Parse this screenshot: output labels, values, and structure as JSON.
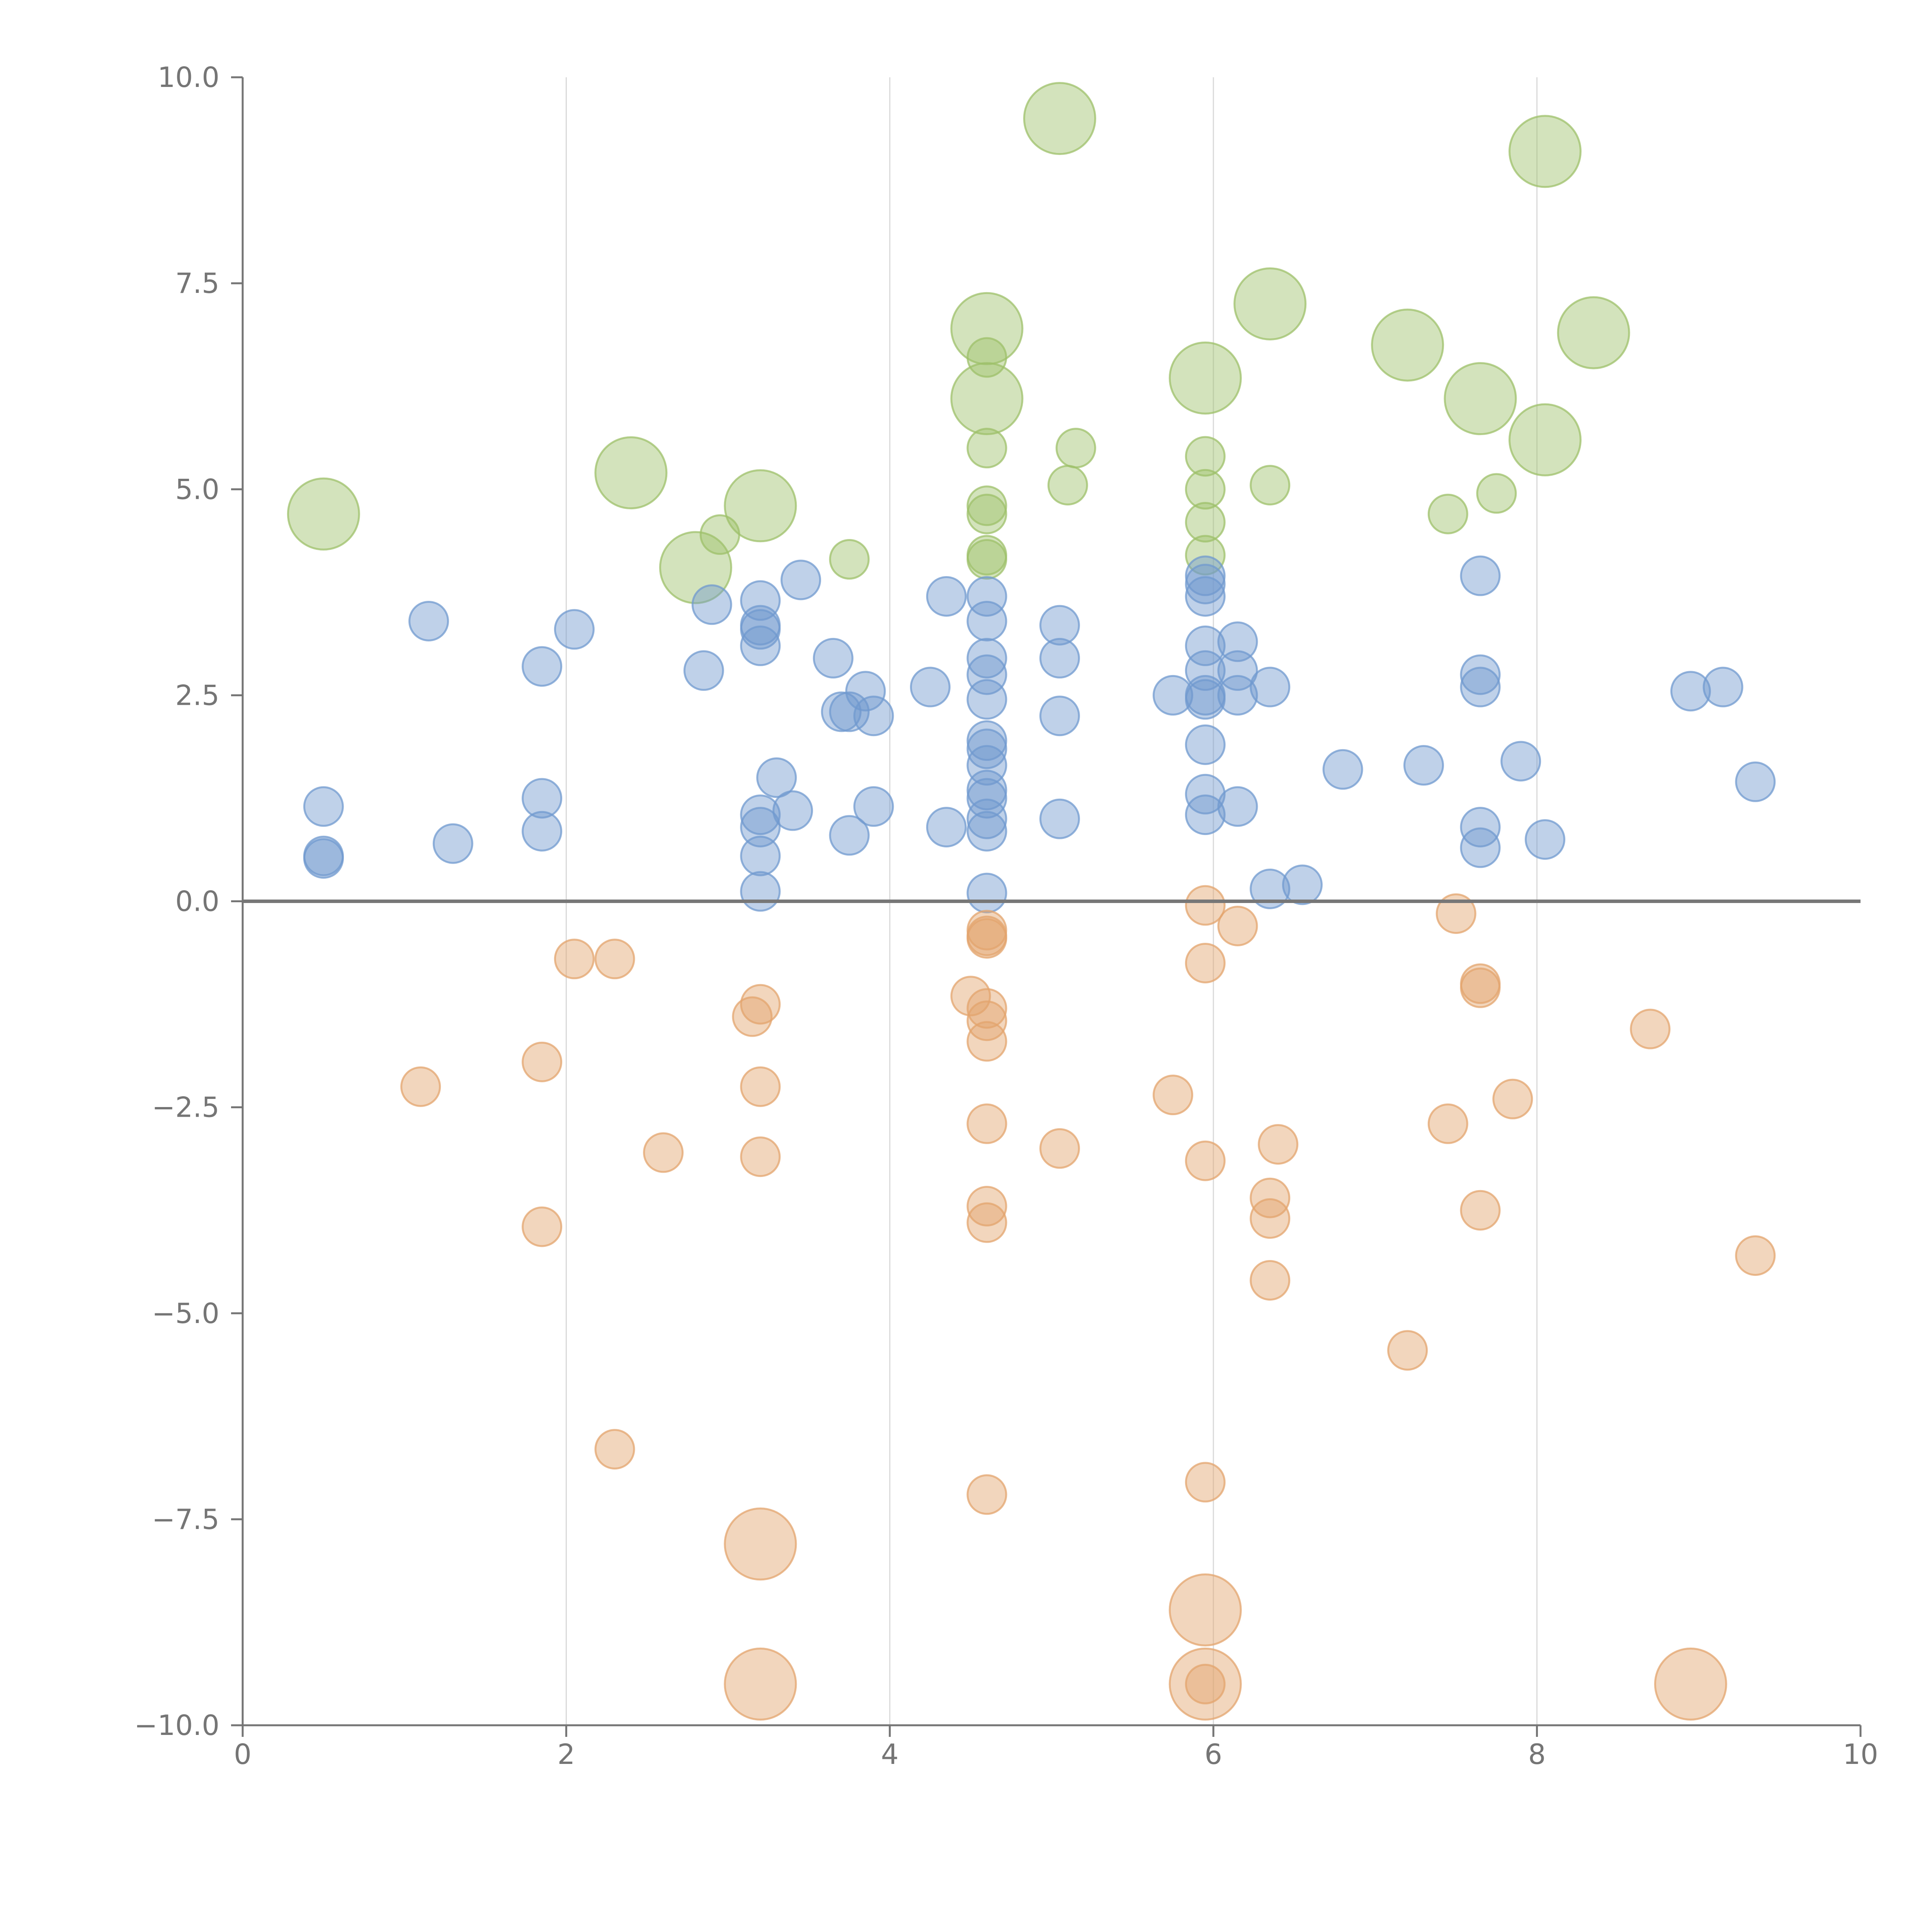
{
  "chart_data": {
    "type": "scatter",
    "title": "",
    "xlabel": "",
    "ylabel": "",
    "xlim": [
      0,
      10
    ],
    "ylim": [
      -10,
      10
    ],
    "xticks": [
      "0",
      "2",
      "4",
      "6",
      "8",
      "10"
    ],
    "yticks": [
      "10.0",
      "7.5",
      "5.0",
      "2.5",
      "0.0",
      "-2.5",
      "-5.0",
      "-7.5",
      "-10.0"
    ],
    "grid": "vertical lines at x = 2, 4, 6, 8",
    "baseline_y": 0,
    "legend": "none",
    "size_scale": "larger bubbles for larger magnitude points",
    "series": [
      {
        "name": "green",
        "color": "#9dc06a",
        "points": [
          [
            0.5,
            4.7,
            "l"
          ],
          [
            2.4,
            5.2,
            "l"
          ],
          [
            2.8,
            4.05,
            "l"
          ],
          [
            2.95,
            4.45,
            "s"
          ],
          [
            3.2,
            4.8,
            "l"
          ],
          [
            3.75,
            4.15,
            "s"
          ],
          [
            4.6,
            6.95,
            "l"
          ],
          [
            4.6,
            6.6,
            "s"
          ],
          [
            4.6,
            6.1,
            "l"
          ],
          [
            4.6,
            5.5,
            "s"
          ],
          [
            4.6,
            4.8,
            "s"
          ],
          [
            4.6,
            4.7,
            "s"
          ],
          [
            4.6,
            4.2,
            "s"
          ],
          [
            4.6,
            4.15,
            "s"
          ],
          [
            5.05,
            9.5,
            "l"
          ],
          [
            5.1,
            5.05,
            "s"
          ],
          [
            5.15,
            5.5,
            "s"
          ],
          [
            5.95,
            6.35,
            "l"
          ],
          [
            5.95,
            5.4,
            "s"
          ],
          [
            5.95,
            5.0,
            "s"
          ],
          [
            5.95,
            4.6,
            "s"
          ],
          [
            5.95,
            4.2,
            "s"
          ],
          [
            6.35,
            7.25,
            "l"
          ],
          [
            6.35,
            5.05,
            "s"
          ],
          [
            7.2,
            6.75,
            "l"
          ],
          [
            7.45,
            4.7,
            "s"
          ],
          [
            7.65,
            6.1,
            "l"
          ],
          [
            7.75,
            4.95,
            "s"
          ],
          [
            8.05,
            9.1,
            "l"
          ],
          [
            8.05,
            5.6,
            "l"
          ],
          [
            8.35,
            6.9,
            "l"
          ]
        ]
      },
      {
        "name": "blue",
        "color": "#7099cf",
        "points": [
          [
            0.5,
            1.15,
            "s"
          ],
          [
            0.5,
            0.55,
            "s"
          ],
          [
            0.5,
            0.52,
            "s"
          ],
          [
            1.15,
            3.4,
            "s"
          ],
          [
            1.3,
            0.7,
            "s"
          ],
          [
            1.85,
            2.85,
            "s"
          ],
          [
            1.85,
            1.25,
            "s"
          ],
          [
            1.85,
            0.85,
            "s"
          ],
          [
            2.05,
            3.3,
            "s"
          ],
          [
            2.85,
            2.8,
            "s"
          ],
          [
            2.9,
            3.6,
            "s"
          ],
          [
            3.2,
            3.65,
            "s"
          ],
          [
            3.2,
            3.35,
            "s"
          ],
          [
            3.2,
            3.3,
            "s"
          ],
          [
            3.2,
            3.1,
            "s"
          ],
          [
            3.2,
            1.05,
            "s"
          ],
          [
            3.2,
            0.9,
            "s"
          ],
          [
            3.2,
            0.55,
            "s"
          ],
          [
            3.2,
            0.12,
            "s"
          ],
          [
            3.3,
            1.5,
            "s"
          ],
          [
            3.4,
            1.1,
            "s"
          ],
          [
            3.45,
            3.9,
            "s"
          ],
          [
            3.65,
            2.95,
            "s"
          ],
          [
            3.7,
            2.3,
            "s"
          ],
          [
            3.75,
            0.8,
            "s"
          ],
          [
            3.75,
            2.3,
            "s"
          ],
          [
            3.85,
            2.55,
            "s"
          ],
          [
            3.9,
            2.25,
            "s"
          ],
          [
            3.9,
            1.15,
            "s"
          ],
          [
            4.25,
            2.6,
            "s"
          ],
          [
            4.35,
            3.7,
            "s"
          ],
          [
            4.35,
            0.9,
            "s"
          ],
          [
            4.6,
            3.7,
            "s"
          ],
          [
            4.6,
            3.4,
            "s"
          ],
          [
            4.6,
            2.95,
            "s"
          ],
          [
            4.6,
            2.75,
            "s"
          ],
          [
            4.6,
            2.45,
            "s"
          ],
          [
            4.6,
            1.95,
            "s"
          ],
          [
            4.6,
            1.85,
            "s"
          ],
          [
            4.6,
            1.65,
            "s"
          ],
          [
            4.6,
            1.35,
            "s"
          ],
          [
            4.6,
            1.25,
            "s"
          ],
          [
            4.6,
            1.0,
            "s"
          ],
          [
            4.6,
            0.85,
            "s"
          ],
          [
            4.6,
            0.1,
            "s"
          ],
          [
            5.05,
            3.35,
            "s"
          ],
          [
            5.05,
            2.95,
            "s"
          ],
          [
            5.05,
            2.25,
            "s"
          ],
          [
            5.05,
            1.0,
            "s"
          ],
          [
            5.75,
            2.5,
            "s"
          ],
          [
            5.95,
            3.95,
            "s"
          ],
          [
            5.95,
            3.85,
            "s"
          ],
          [
            5.95,
            3.7,
            "s"
          ],
          [
            5.95,
            3.1,
            "s"
          ],
          [
            5.95,
            2.8,
            "s"
          ],
          [
            5.95,
            2.5,
            "s"
          ],
          [
            5.95,
            2.45,
            "s"
          ],
          [
            5.95,
            1.9,
            "s"
          ],
          [
            5.95,
            1.3,
            "s"
          ],
          [
            5.95,
            1.05,
            "s"
          ],
          [
            6.15,
            3.15,
            "s"
          ],
          [
            6.15,
            2.8,
            "s"
          ],
          [
            6.15,
            2.5,
            "s"
          ],
          [
            6.15,
            1.15,
            "s"
          ],
          [
            6.35,
            2.6,
            "s"
          ],
          [
            6.35,
            0.15,
            "s"
          ],
          [
            6.55,
            0.2,
            "s"
          ],
          [
            6.8,
            1.6,
            "s"
          ],
          [
            7.3,
            1.65,
            "s"
          ],
          [
            7.65,
            3.95,
            "s"
          ],
          [
            7.65,
            2.75,
            "s"
          ],
          [
            7.65,
            2.6,
            "s"
          ],
          [
            7.65,
            0.9,
            "s"
          ],
          [
            7.65,
            0.65,
            "s"
          ],
          [
            7.9,
            1.7,
            "s"
          ],
          [
            8.05,
            0.75,
            "s"
          ],
          [
            8.95,
            2.55,
            "s"
          ],
          [
            9.15,
            2.6,
            "s"
          ],
          [
            9.35,
            1.45,
            "s"
          ]
        ]
      },
      {
        "name": "orange",
        "color": "#e3a46d",
        "points": [
          [
            1.1,
            -2.25,
            "s"
          ],
          [
            1.85,
            -1.95,
            "s"
          ],
          [
            1.85,
            -3.95,
            "s"
          ],
          [
            2.05,
            -0.7,
            "s"
          ],
          [
            2.3,
            -0.7,
            "s"
          ],
          [
            2.3,
            -6.65,
            "s"
          ],
          [
            2.6,
            -3.05,
            "s"
          ],
          [
            3.2,
            -1.25,
            "s"
          ],
          [
            3.15,
            -1.4,
            "s"
          ],
          [
            3.2,
            -2.25,
            "s"
          ],
          [
            3.2,
            -3.1,
            "s"
          ],
          [
            3.2,
            -7.8,
            "l"
          ],
          [
            3.2,
            -9.5,
            "l"
          ],
          [
            4.5,
            -1.15,
            "s"
          ],
          [
            4.6,
            -0.35,
            "s"
          ],
          [
            4.6,
            -0.42,
            "s"
          ],
          [
            4.6,
            -0.45,
            "s"
          ],
          [
            4.6,
            -1.3,
            "s"
          ],
          [
            4.6,
            -1.45,
            "s"
          ],
          [
            4.6,
            -1.7,
            "s"
          ],
          [
            4.6,
            -2.7,
            "s"
          ],
          [
            4.6,
            -3.7,
            "s"
          ],
          [
            4.6,
            -3.9,
            "s"
          ],
          [
            4.6,
            -7.2,
            "s"
          ],
          [
            5.05,
            -3.0,
            "s"
          ],
          [
            5.75,
            -2.35,
            "s"
          ],
          [
            5.95,
            -0.05,
            "s"
          ],
          [
            5.95,
            -0.75,
            "s"
          ],
          [
            5.95,
            -3.15,
            "s"
          ],
          [
            5.95,
            -7.05,
            "s"
          ],
          [
            5.95,
            -8.6,
            "l"
          ],
          [
            5.95,
            -9.5,
            "l"
          ],
          [
            5.95,
            -9.5,
            "s"
          ],
          [
            6.15,
            -0.3,
            "s"
          ],
          [
            6.35,
            -3.6,
            "s"
          ],
          [
            6.35,
            -3.85,
            "s"
          ],
          [
            6.35,
            -4.6,
            "s"
          ],
          [
            6.4,
            -2.95,
            "s"
          ],
          [
            7.2,
            -5.45,
            "s"
          ],
          [
            7.45,
            -2.7,
            "s"
          ],
          [
            7.5,
            -0.15,
            "s"
          ],
          [
            7.65,
            -1.0,
            "s"
          ],
          [
            7.65,
            -1.05,
            "s"
          ],
          [
            7.65,
            -3.75,
            "s"
          ],
          [
            7.85,
            -2.4,
            "s"
          ],
          [
            8.7,
            -1.55,
            "s"
          ],
          [
            8.95,
            -9.5,
            "l"
          ],
          [
            9.35,
            -4.3,
            "s"
          ]
        ]
      }
    ]
  }
}
